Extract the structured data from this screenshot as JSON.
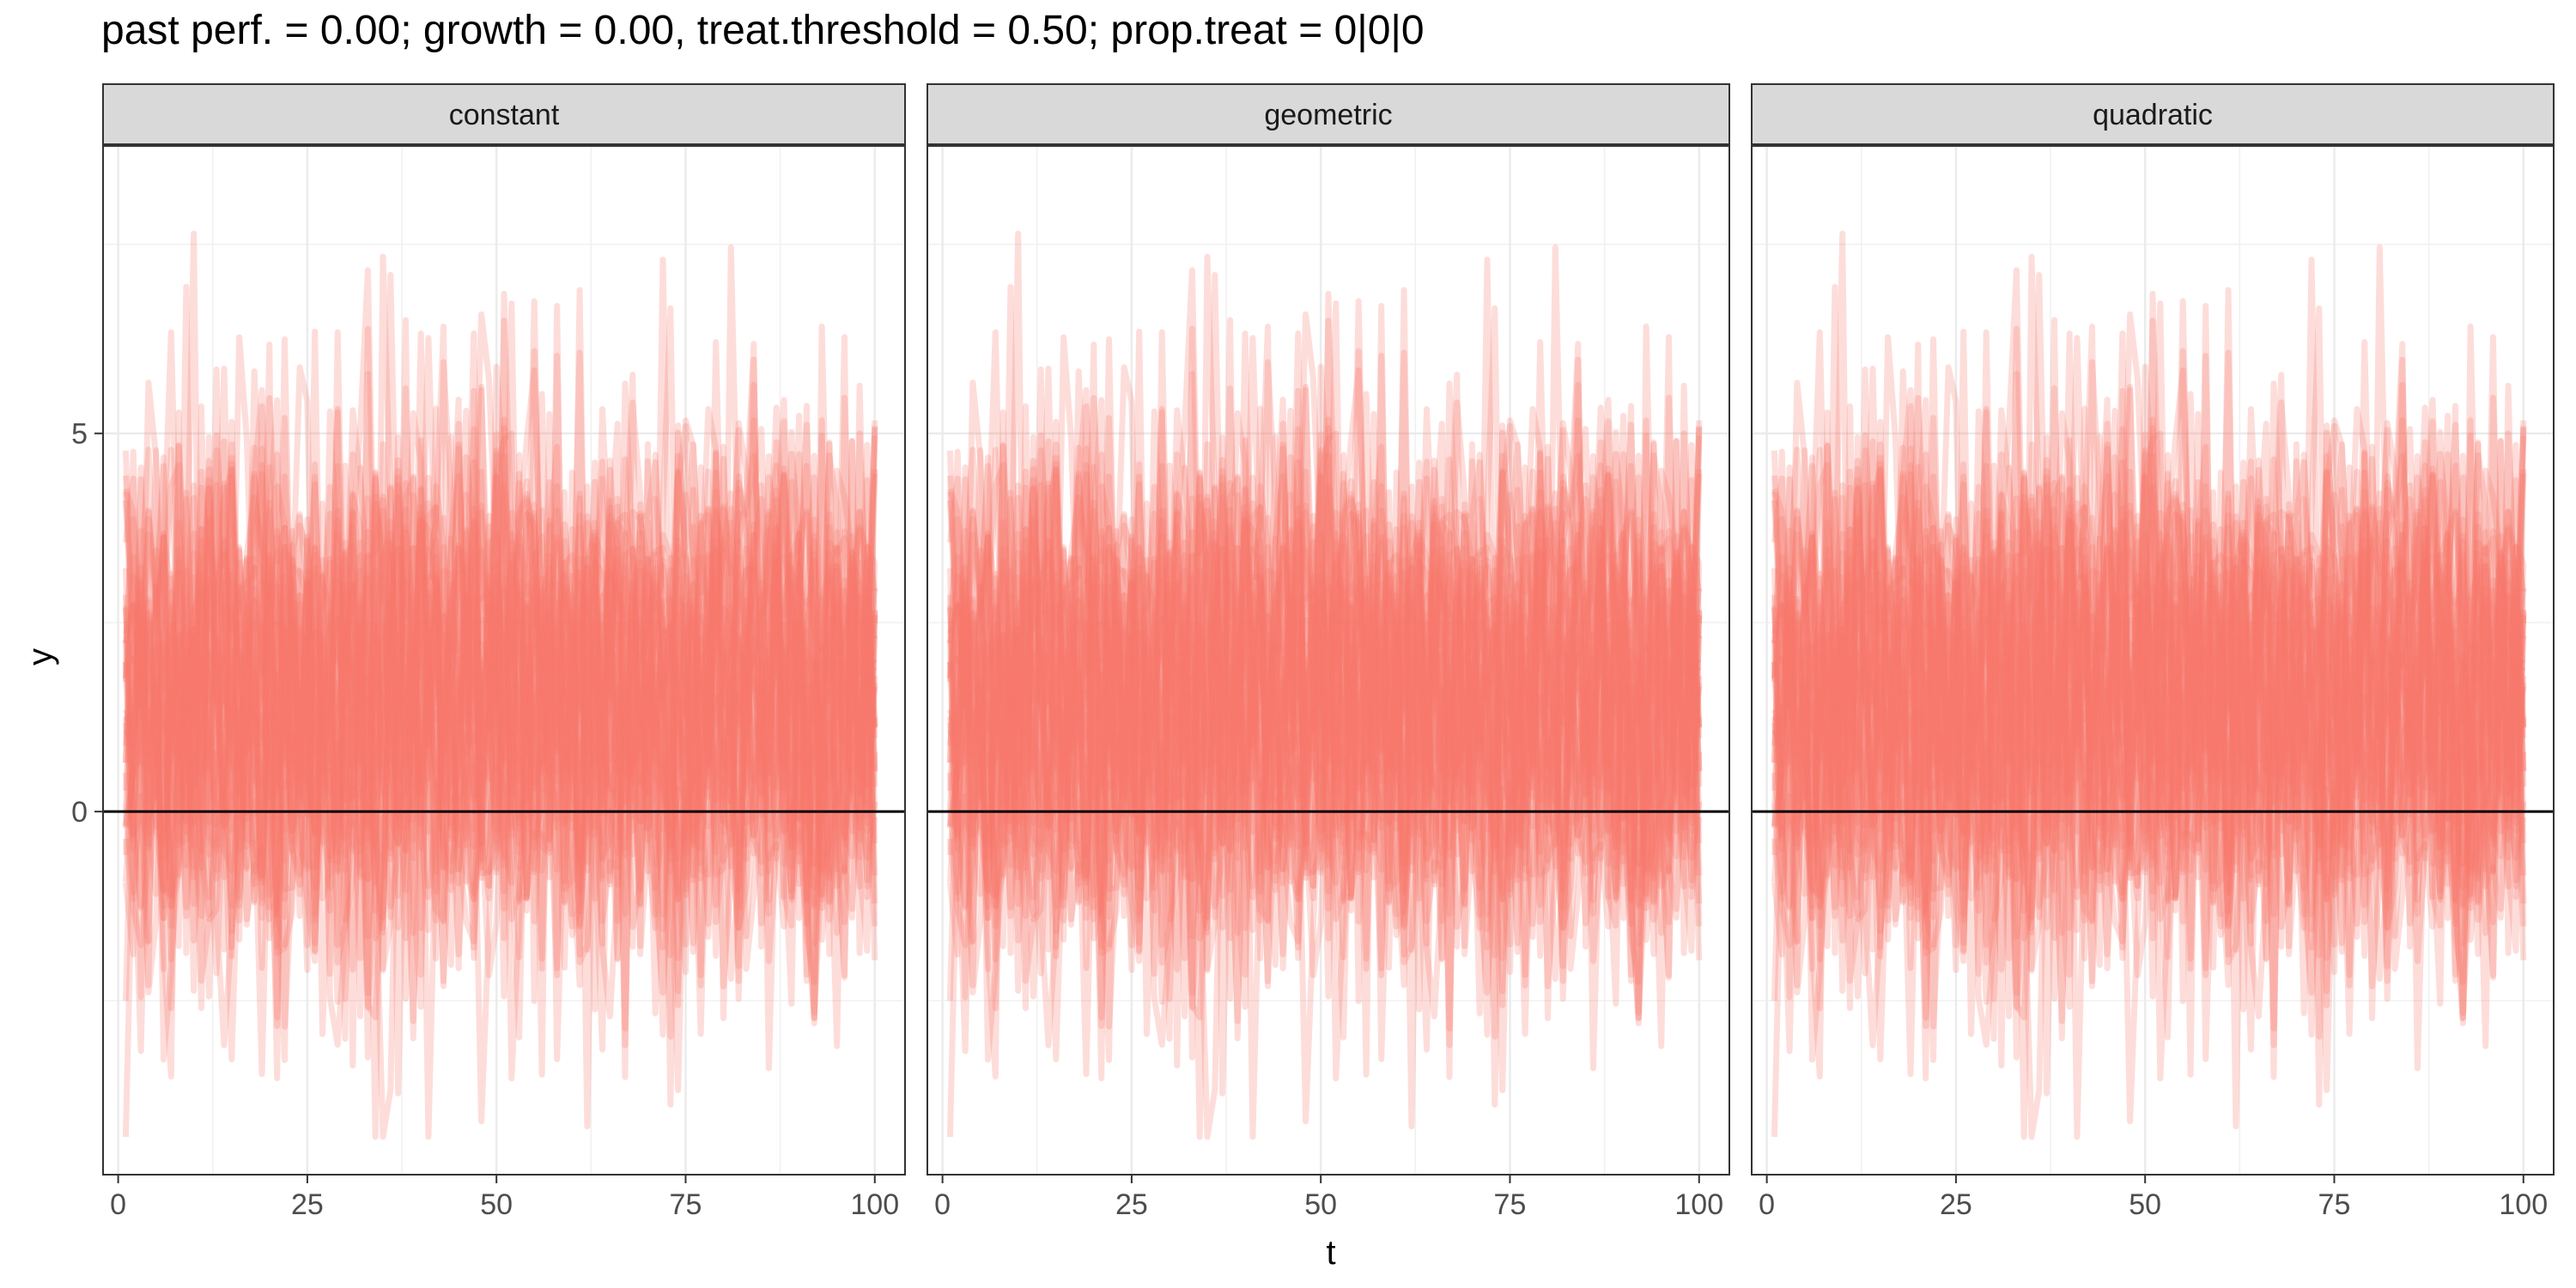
{
  "title": "past perf. = 0.00; growth = 0.00,  treat.threshold = 0.50;  prop.treat = 0|0|0",
  "chart_data": {
    "type": "line",
    "title": "past perf. = 0.00; growth = 0.00,  treat.threshold = 0.50;  prop.treat = 0|0|0",
    "facets": [
      "constant",
      "geometric",
      "quadratic"
    ],
    "xlabel": "t",
    "ylabel": "y",
    "xlim": [
      -2,
      104
    ],
    "ylim": [
      -4.8,
      8.8
    ],
    "x_ticks": [
      0,
      25,
      50,
      75,
      100
    ],
    "x_tick_labels": [
      "0",
      "25",
      "50",
      "75",
      "100"
    ],
    "y_ticks": [
      0,
      5
    ],
    "y_tick_labels": [
      "0",
      "5"
    ],
    "reference_line_y": 0,
    "t_range": [
      1,
      100
    ],
    "n_series": 40,
    "series_color": "#F8766D",
    "series_opacity": 0.25,
    "y_center": 1.5,
    "y_band": [
      -4.3,
      8.1
    ],
    "grid": true,
    "legend": "none"
  }
}
